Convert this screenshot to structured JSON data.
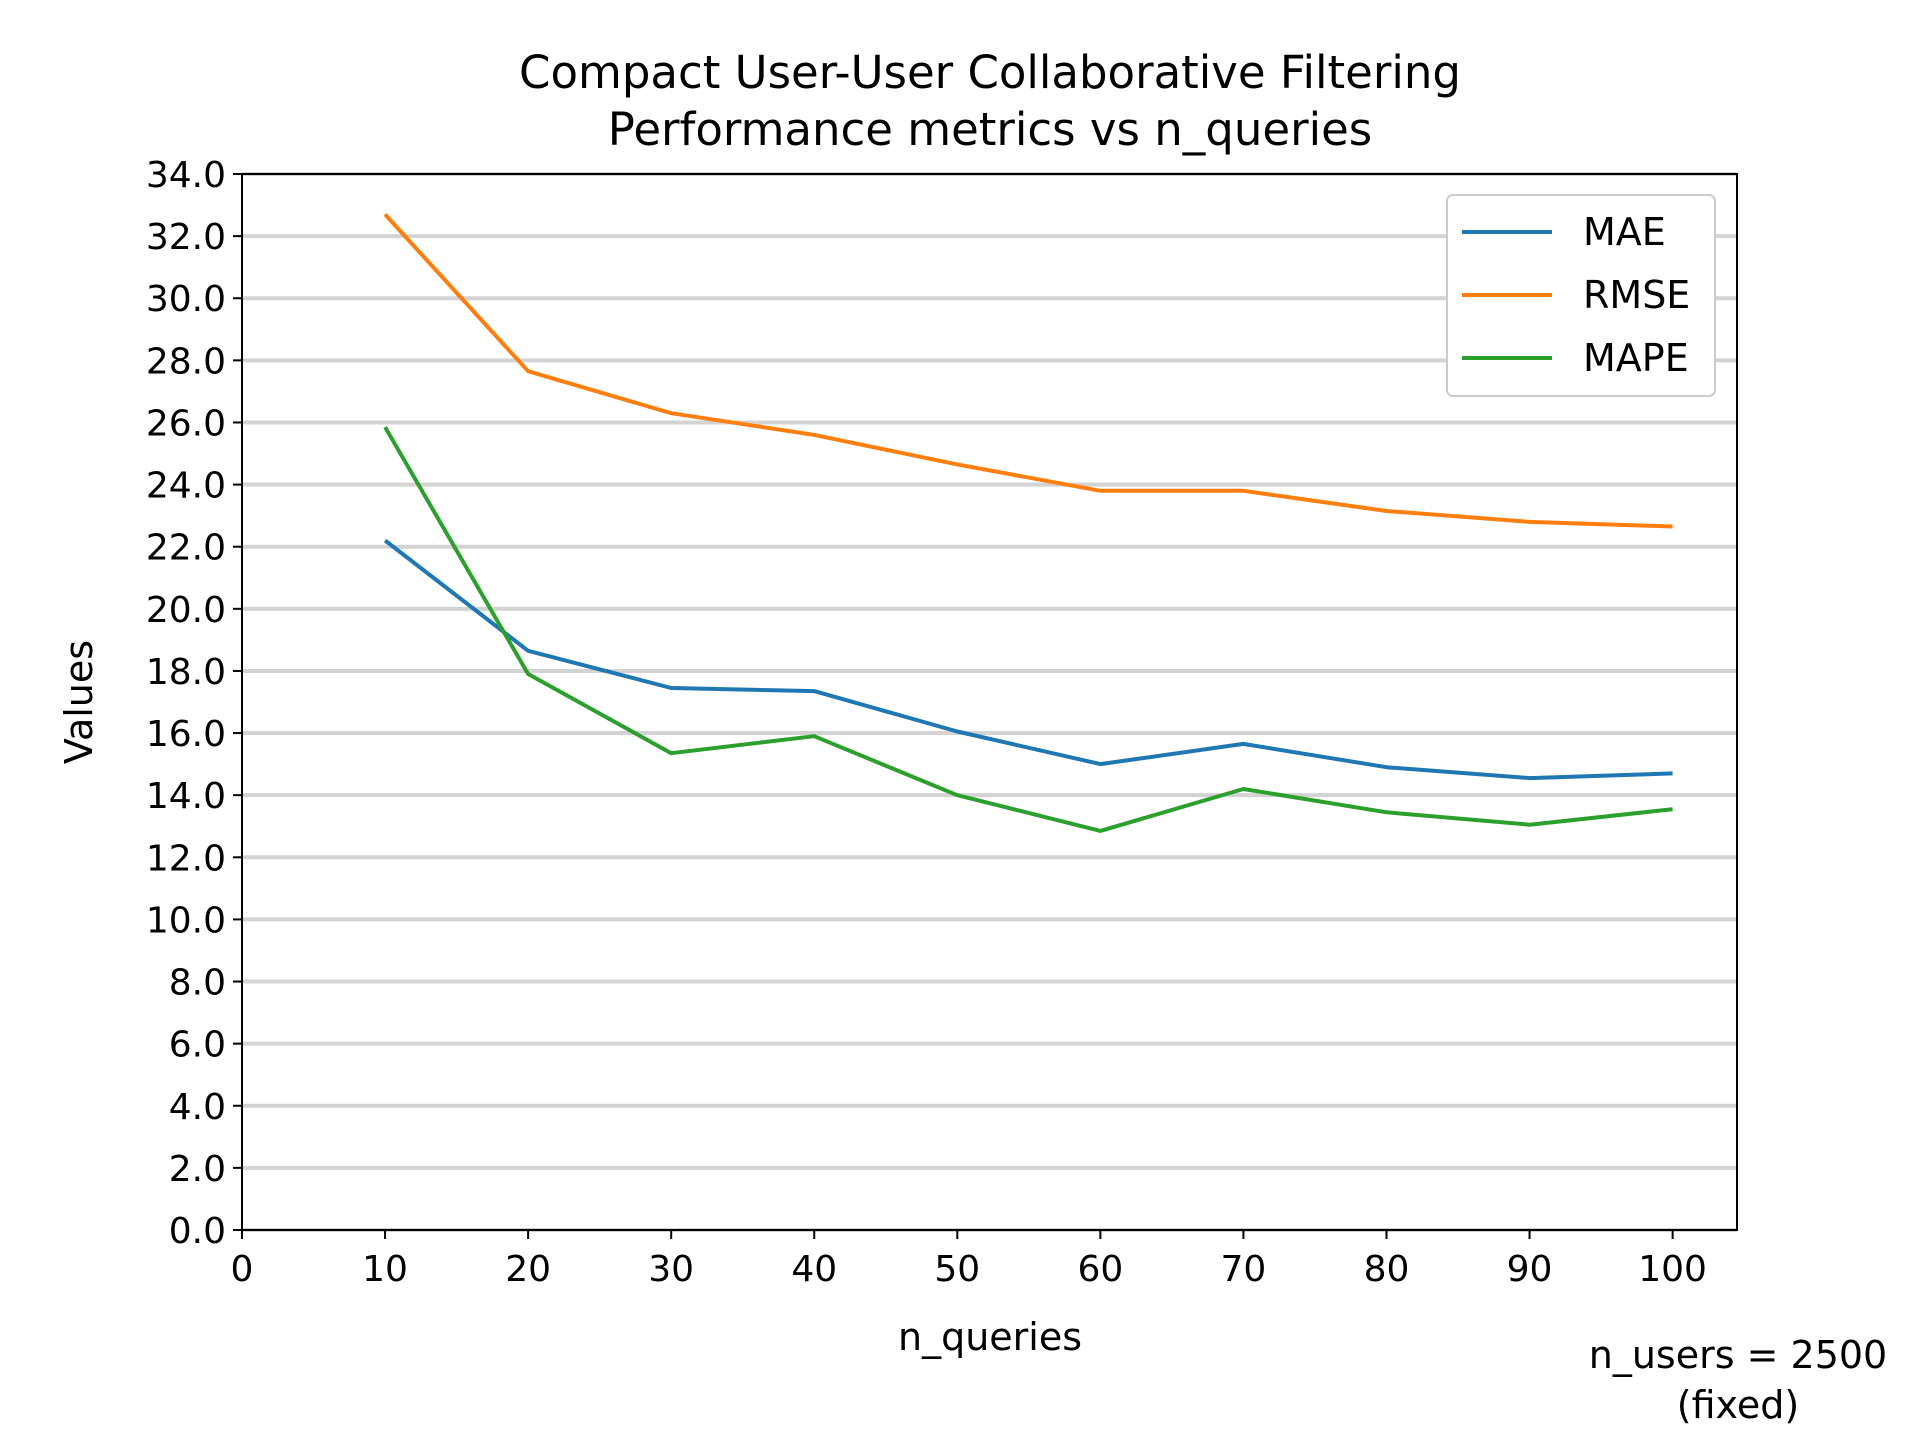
{
  "chart_data": {
    "type": "line",
    "title_line1": "Compact User-User Collaborative Filtering",
    "title_line2": "Performance metrics vs n_queries",
    "xlabel": "n_queries",
    "ylabel": "Values",
    "xlim": [
      0,
      104.5
    ],
    "ylim": [
      0,
      34
    ],
    "x_ticks": [
      0,
      10,
      20,
      30,
      40,
      50,
      60,
      70,
      80,
      90,
      100
    ],
    "y_ticks": [
      0,
      2,
      4,
      6,
      8,
      10,
      12,
      14,
      16,
      18,
      20,
      22,
      24,
      26,
      28,
      30,
      32,
      34
    ],
    "y_tick_format": "one-decimal",
    "grid": "horizontal",
    "legend_position": "top-right",
    "x": [
      10,
      20,
      30,
      40,
      50,
      60,
      70,
      80,
      90,
      100
    ],
    "series": [
      {
        "name": "MAE",
        "color": "#1f77b4",
        "values": [
          22.2,
          18.65,
          17.45,
          17.35,
          16.05,
          15.0,
          15.65,
          14.9,
          14.55,
          14.7
        ]
      },
      {
        "name": "RMSE",
        "color": "#ff7f0e",
        "values": [
          32.7,
          27.65,
          26.3,
          25.6,
          24.65,
          23.8,
          23.8,
          23.15,
          22.8,
          22.65
        ]
      },
      {
        "name": "MAPE",
        "color": "#2ca02c",
        "values": [
          25.85,
          17.9,
          15.35,
          15.9,
          14.0,
          12.85,
          14.2,
          13.45,
          13.05,
          13.55
        ]
      }
    ],
    "annotation_line1": "n_users = 2500",
    "annotation_line2": "(fixed)"
  },
  "colors": {
    "grid": "#d3d3d3",
    "axis": "#000000",
    "legend_border": "#cccccc"
  }
}
